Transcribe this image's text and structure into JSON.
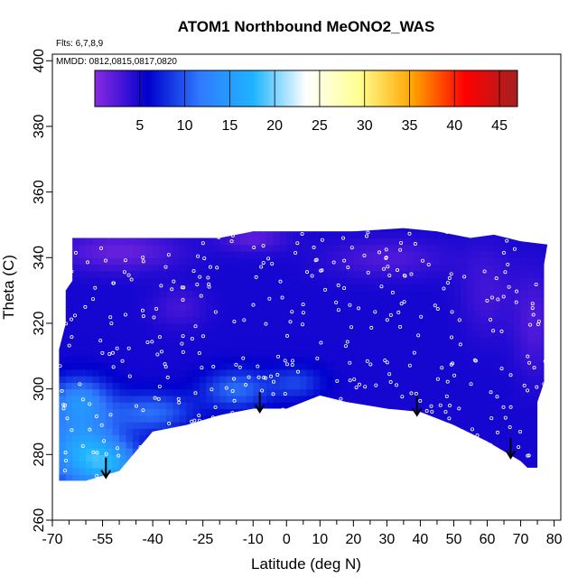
{
  "chart_data": {
    "type": "heatmap",
    "title": "ATOM1 Northbound MeONO2_WAS",
    "annotations": {
      "flights": "Flts: 6,7,8,9",
      "dates": "MMDD: 0812,0815,0817,0820"
    },
    "xlabel": "Latitude (deg N)",
    "ylabel": "Theta (C)",
    "xlim": [
      -70,
      82
    ],
    "ylim": [
      260,
      402
    ],
    "x_ticks": [
      -70,
      -55,
      -40,
      -25,
      -10,
      0,
      10,
      20,
      30,
      40,
      50,
      60,
      70,
      80
    ],
    "x_minor_ticks": [
      -65,
      -60,
      -50,
      -45,
      -35,
      -30,
      -20,
      -15,
      -5,
      5,
      15,
      25,
      35,
      45,
      55,
      65,
      75
    ],
    "y_ticks": [
      260,
      280,
      300,
      320,
      340,
      360,
      380,
      400
    ],
    "colorbar": {
      "range": [
        0,
        47
      ],
      "ticks": [
        5,
        10,
        15,
        20,
        25,
        30,
        35,
        40,
        45
      ],
      "colors": [
        "#8a2be2",
        "#0000cd",
        "#2f7bff",
        "#1eb4ff",
        "#ffffff",
        "#ffff90",
        "#ffa500",
        "#ff0000",
        "#a52020"
      ]
    },
    "field": {
      "lower_boundary": [
        [
          -68,
          272
        ],
        [
          -60,
          272
        ],
        [
          -50,
          275
        ],
        [
          -40,
          287
        ],
        [
          -30,
          289
        ],
        [
          -20,
          292
        ],
        [
          -10,
          294
        ],
        [
          0,
          294
        ],
        [
          10,
          298
        ],
        [
          18,
          296
        ],
        [
          30,
          294
        ],
        [
          40,
          293
        ],
        [
          50,
          289
        ],
        [
          60,
          284
        ],
        [
          70,
          278
        ],
        [
          72,
          276
        ],
        [
          75,
          276
        ],
        [
          75,
          296
        ],
        [
          77,
          302
        ],
        [
          77,
          338
        ],
        [
          78,
          344
        ],
        [
          70,
          345
        ],
        [
          62,
          347
        ],
        [
          55,
          346
        ],
        [
          50,
          347
        ],
        [
          45,
          348
        ],
        [
          35,
          349
        ],
        [
          20,
          348
        ],
        [
          10,
          348
        ],
        [
          0,
          348
        ],
        [
          -10,
          348
        ],
        [
          -20,
          346
        ],
        [
          -30,
          346
        ],
        [
          -40,
          346
        ],
        [
          -50,
          346
        ],
        [
          -60,
          346
        ],
        [
          -64,
          346
        ],
        [
          -64,
          333
        ],
        [
          -66,
          330
        ],
        [
          -66,
          320
        ],
        [
          -68,
          312
        ]
      ],
      "base_value": 5,
      "features": [
        {
          "lat": -62,
          "theta": 282,
          "value": 15,
          "lat_radius": 12,
          "theta_radius": 12
        },
        {
          "lat": -52,
          "theta": 277,
          "value": 13,
          "lat_radius": 10,
          "theta_radius": 7
        },
        {
          "lat": -62,
          "theta": 297,
          "value": 12,
          "lat_radius": 9,
          "theta_radius": 7
        },
        {
          "lat": -40,
          "theta": 293,
          "value": 11,
          "lat_radius": 12,
          "theta_radius": 6
        },
        {
          "lat": -15,
          "theta": 300,
          "value": 11,
          "lat_radius": 10,
          "theta_radius": 6
        },
        {
          "lat": 3,
          "theta": 302,
          "value": 9,
          "lat_radius": 8,
          "theta_radius": 5
        },
        {
          "lat": 30,
          "theta": 340,
          "value": 2.5,
          "lat_radius": 18,
          "theta_radius": 6
        },
        {
          "lat": -50,
          "theta": 342,
          "value": 1.5,
          "lat_radius": 18,
          "theta_radius": 6
        },
        {
          "lat": 60,
          "theta": 330,
          "value": 3,
          "lat_radius": 8,
          "theta_radius": 14
        },
        {
          "lat": 74,
          "theta": 320,
          "value": 2.5,
          "lat_radius": 6,
          "theta_radius": 16
        },
        {
          "lat": -10,
          "theta": 346,
          "value": 2,
          "lat_radius": 10,
          "theta_radius": 4
        },
        {
          "lat": -32,
          "theta": 325,
          "value": 3,
          "lat_radius": 8,
          "theta_radius": 6
        }
      ],
      "markers": [
        {
          "lat": -54,
          "theta": 273
        },
        {
          "lat": -8,
          "theta": 293
        },
        {
          "lat": 39,
          "theta": 292
        },
        {
          "lat": 67,
          "theta": 279
        }
      ]
    }
  }
}
